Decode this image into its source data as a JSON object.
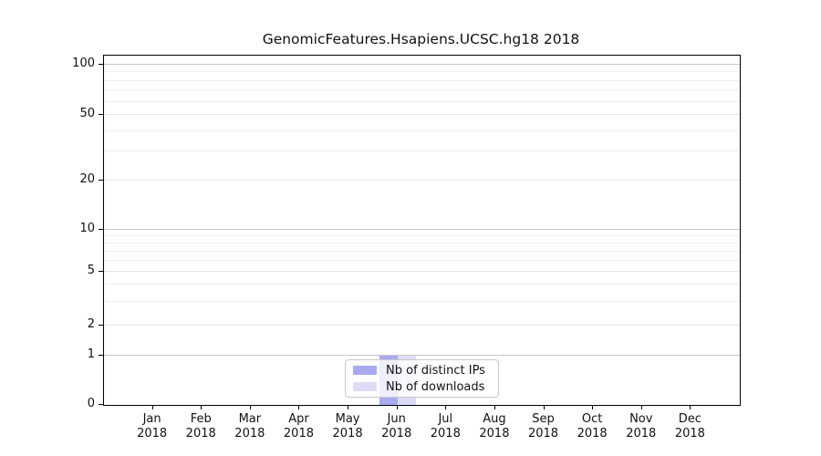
{
  "chart_data": {
    "type": "bar",
    "title": "GenomicFeatures.Hsapiens.UCSC.hg18 2018",
    "categories": [
      "Jan",
      "Feb",
      "Mar",
      "Apr",
      "May",
      "Jun",
      "Jul",
      "Aug",
      "Sep",
      "Oct",
      "Nov",
      "Dec"
    ],
    "x_year_label": "2018",
    "series": [
      {
        "name": "Nb of distinct IPs",
        "color": "#aaaaf2",
        "values": [
          0,
          0,
          0,
          0,
          0,
          1,
          0,
          0,
          0,
          0,
          0,
          0
        ]
      },
      {
        "name": "Nb of downloads",
        "color": "#dcdcf5",
        "values": [
          0,
          0,
          0,
          0,
          0,
          1,
          0,
          0,
          0,
          0,
          0,
          0
        ]
      }
    ],
    "y_axis": {
      "scale": "log1p",
      "major_ticks": [
        0,
        1,
        2,
        5,
        10,
        20,
        50,
        100
      ],
      "emphasized_gridlines": [
        1,
        10,
        100
      ],
      "minor_gridlines": [
        3,
        4,
        6,
        7,
        8,
        9,
        30,
        40,
        60,
        70,
        80,
        90
      ],
      "ylim": [
        0,
        120
      ]
    },
    "legend_position": "bottom-center",
    "grid": "horizontal",
    "colors": {
      "gridline_major": "#c8c8c8",
      "gridline_mid": "#e6e6e6",
      "gridline_minor": "#efefef",
      "axis": "#000000",
      "text": "#111111"
    }
  }
}
